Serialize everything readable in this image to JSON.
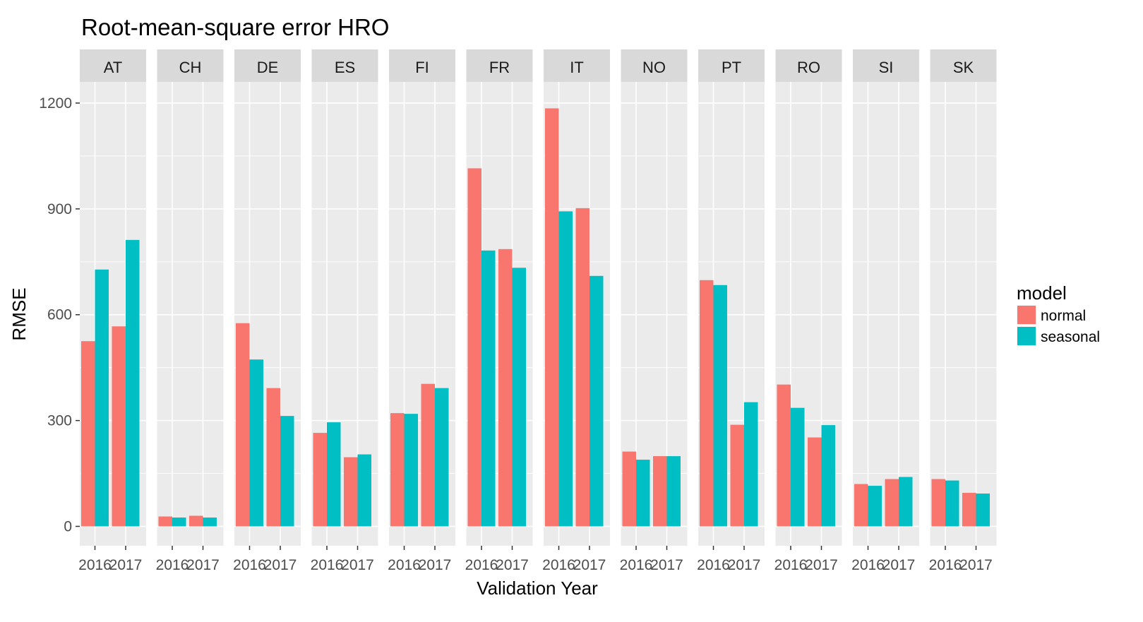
{
  "chart_data": {
    "type": "bar",
    "title": "Root-mean-square error HRO",
    "xlabel": "Validation Year",
    "ylabel": "RMSE",
    "ylim": [
      -55,
      1260
    ],
    "yticks": [
      0,
      300,
      600,
      900,
      1200
    ],
    "grid": true,
    "legend": {
      "title": "model",
      "placement": "right",
      "entries": [
        "normal",
        "seasonal"
      ]
    },
    "colors": {
      "normal": "#F8766D",
      "seasonal": "#00BFC4",
      "panel": "#EBEBEB",
      "strip": "#D9D9D9",
      "grid": "#FFFFFF"
    },
    "categories": [
      "2016",
      "2017"
    ],
    "facets": [
      {
        "name": "AT",
        "series": [
          {
            "name": "normal",
            "values": [
              525,
              567
            ]
          },
          {
            "name": "seasonal",
            "values": [
              728,
              812
            ]
          }
        ]
      },
      {
        "name": "CH",
        "series": [
          {
            "name": "normal",
            "values": [
              28,
              30
            ]
          },
          {
            "name": "seasonal",
            "values": [
              25,
              25
            ]
          }
        ]
      },
      {
        "name": "DE",
        "series": [
          {
            "name": "normal",
            "values": [
              576,
              392
            ]
          },
          {
            "name": "seasonal",
            "values": [
              473,
              313
            ]
          }
        ]
      },
      {
        "name": "ES",
        "series": [
          {
            "name": "normal",
            "values": [
              265,
              196
            ]
          },
          {
            "name": "seasonal",
            "values": [
              295,
              204
            ]
          }
        ]
      },
      {
        "name": "FI",
        "series": [
          {
            "name": "normal",
            "values": [
              321,
              404
            ]
          },
          {
            "name": "seasonal",
            "values": [
              319,
              392
            ]
          }
        ]
      },
      {
        "name": "FR",
        "series": [
          {
            "name": "normal",
            "values": [
              1015,
              786
            ]
          },
          {
            "name": "seasonal",
            "values": [
              782,
              733
            ]
          }
        ]
      },
      {
        "name": "IT",
        "series": [
          {
            "name": "normal",
            "values": [
              1185,
              902
            ]
          },
          {
            "name": "seasonal",
            "values": [
              893,
              710
            ]
          }
        ]
      },
      {
        "name": "NO",
        "series": [
          {
            "name": "normal",
            "values": [
              212,
              199
            ]
          },
          {
            "name": "seasonal",
            "values": [
              189,
              199
            ]
          }
        ]
      },
      {
        "name": "PT",
        "series": [
          {
            "name": "normal",
            "values": [
              698,
              288
            ]
          },
          {
            "name": "seasonal",
            "values": [
              684,
              352
            ]
          }
        ]
      },
      {
        "name": "RO",
        "series": [
          {
            "name": "normal",
            "values": [
              402,
              252
            ]
          },
          {
            "name": "seasonal",
            "values": [
              336,
              287
            ]
          }
        ]
      },
      {
        "name": "SI",
        "series": [
          {
            "name": "normal",
            "values": [
              120,
              134
            ]
          },
          {
            "name": "seasonal",
            "values": [
              115,
              140
            ]
          }
        ]
      },
      {
        "name": "SK",
        "series": [
          {
            "name": "normal",
            "values": [
              134,
              95
            ]
          },
          {
            "name": "seasonal",
            "values": [
              130,
              93
            ]
          }
        ]
      }
    ]
  }
}
